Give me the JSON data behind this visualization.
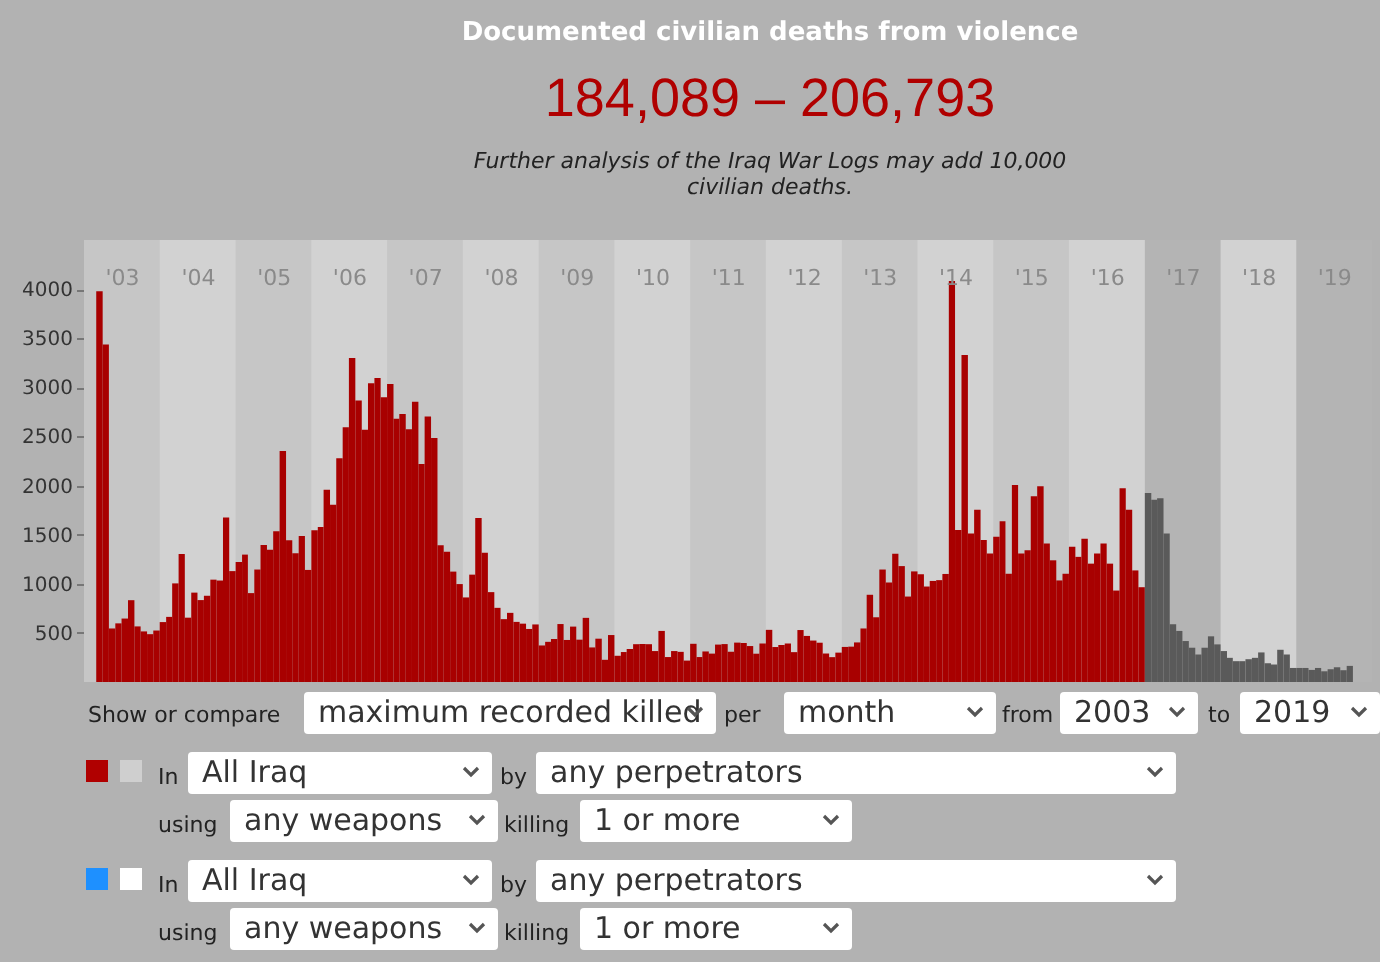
{
  "chart_data": {
    "type": "bar",
    "title": "Documented civilian deaths from violence",
    "subtitle": "184,089 – 206,793",
    "annotations": [
      "Further analysis of the Iraq War Logs may add 10,000 civilian deaths.",
      "Show or compare",
      "maximum recorded killed",
      "per",
      "month",
      "from",
      "2003",
      "to",
      "2019",
      "In",
      "All Iraq",
      "by",
      "any perpetrators",
      "using",
      "any weapons",
      "killing",
      "1 or more",
      "In",
      "All Iraq",
      "by",
      "any perpetrators",
      "using",
      "any weapons",
      "killing",
      "1 or more"
    ],
    "xlim": [
      "2003-01",
      "2020-01"
    ],
    "xticks": [
      {
        "value": "2003-07",
        "label": "'03"
      },
      {
        "value": "2004-07",
        "label": "'04"
      },
      {
        "value": "2005-07",
        "label": "'05"
      },
      {
        "value": "2006-07",
        "label": "'06"
      },
      {
        "value": "2007-07",
        "label": "'07"
      },
      {
        "value": "2008-07",
        "label": "'08"
      },
      {
        "value": "2009-07",
        "label": "'09"
      },
      {
        "value": "2010-07",
        "label": "'10"
      },
      {
        "value": "2011-07",
        "label": "'11"
      },
      {
        "value": "2012-07",
        "label": "'12"
      },
      {
        "value": "2013-07",
        "label": "'13"
      },
      {
        "value": "2014-07",
        "label": "'14"
      },
      {
        "value": "2015-07",
        "label": "'15"
      },
      {
        "value": "2016-07",
        "label": "'16"
      },
      {
        "value": "2017-07",
        "label": "'17"
      },
      {
        "value": "2018-07",
        "label": "'18"
      },
      {
        "value": "2019-07",
        "label": "'19"
      }
    ],
    "ylim": [
      0,
      4500
    ],
    "yticks": [
      500,
      1000,
      1500,
      2000,
      2500,
      3000,
      3500,
      4000
    ],
    "bands": [
      {
        "axis": "x",
        "from": "2003-01",
        "to": "2004-01",
        "color": "#c6c6c6"
      },
      {
        "axis": "x",
        "from": "2005-01",
        "to": "2006-01",
        "color": "#c6c6c6"
      },
      {
        "axis": "x",
        "from": "2007-01",
        "to": "2008-01",
        "color": "#c6c6c6"
      },
      {
        "axis": "x",
        "from": "2009-01",
        "to": "2010-01",
        "color": "#c6c6c6"
      },
      {
        "axis": "x",
        "from": "2011-01",
        "to": "2012-01",
        "color": "#c6c6c6"
      },
      {
        "axis": "x",
        "from": "2013-01",
        "to": "2014-01",
        "color": "#c6c6c6"
      },
      {
        "axis": "x",
        "from": "2015-01",
        "to": "2016-01",
        "color": "#c6c6c6"
      },
      {
        "axis": "x",
        "from": "2017-01",
        "to": "2018-01",
        "color": "#b4b4b4"
      },
      {
        "axis": "x",
        "from": "2019-01",
        "to": "2020-01",
        "color": "#b4b4b4"
      }
    ],
    "series": [
      {
        "color": "#a80000",
        "x": [
          "2003-01",
          "2003-02",
          "2003-03",
          "2003-04",
          "2003-05",
          "2003-06",
          "2003-07",
          "2003-08",
          "2003-09",
          "2003-10",
          "2003-11",
          "2003-12",
          "2004-01",
          "2004-02",
          "2004-03",
          "2004-04",
          "2004-05",
          "2004-06",
          "2004-07",
          "2004-08",
          "2004-09",
          "2004-10",
          "2004-11",
          "2004-12",
          "2005-01",
          "2005-02",
          "2005-03",
          "2005-04",
          "2005-05",
          "2005-06",
          "2005-07",
          "2005-08",
          "2005-09",
          "2005-10",
          "2005-11",
          "2005-12",
          "2006-01",
          "2006-02",
          "2006-03",
          "2006-04",
          "2006-05",
          "2006-06",
          "2006-07",
          "2006-08",
          "2006-09",
          "2006-10",
          "2006-11",
          "2006-12",
          "2007-01",
          "2007-02",
          "2007-03",
          "2007-04",
          "2007-05",
          "2007-06",
          "2007-07",
          "2007-08",
          "2007-09",
          "2007-10",
          "2007-11",
          "2007-12",
          "2008-01",
          "2008-02",
          "2008-03",
          "2008-04",
          "2008-05",
          "2008-06",
          "2008-07",
          "2008-08",
          "2008-09",
          "2008-10",
          "2008-11",
          "2008-12",
          "2009-01",
          "2009-02",
          "2009-03",
          "2009-04",
          "2009-05",
          "2009-06",
          "2009-07",
          "2009-08",
          "2009-09",
          "2009-10",
          "2009-11",
          "2009-12",
          "2010-01",
          "2010-02",
          "2010-03",
          "2010-04",
          "2010-05",
          "2010-06",
          "2010-07",
          "2010-08",
          "2010-09",
          "2010-10",
          "2010-11",
          "2010-12",
          "2011-01",
          "2011-02",
          "2011-03",
          "2011-04",
          "2011-05",
          "2011-06",
          "2011-07",
          "2011-08",
          "2011-09",
          "2011-10",
          "2011-11",
          "2011-12",
          "2012-01",
          "2012-02",
          "2012-03",
          "2012-04",
          "2012-05",
          "2012-06",
          "2012-07",
          "2012-08",
          "2012-09",
          "2012-10",
          "2012-11",
          "2012-12",
          "2013-01",
          "2013-02",
          "2013-03",
          "2013-04",
          "2013-05",
          "2013-06",
          "2013-07",
          "2013-08",
          "2013-09",
          "2013-10",
          "2013-11",
          "2013-12",
          "2014-01",
          "2014-02",
          "2014-03",
          "2014-04",
          "2014-05",
          "2014-06",
          "2014-07",
          "2014-08",
          "2014-09",
          "2014-10",
          "2014-11",
          "2014-12",
          "2015-01",
          "2015-02",
          "2015-03",
          "2015-04",
          "2015-05",
          "2015-06",
          "2015-07",
          "2015-08",
          "2015-09",
          "2015-10",
          "2015-11",
          "2015-12",
          "2016-01",
          "2016-02",
          "2016-03",
          "2016-04",
          "2016-05",
          "2016-06",
          "2016-07",
          "2016-08",
          "2016-09",
          "2016-10",
          "2016-11",
          "2016-12"
        ],
        "values": [
          0,
          0,
          3977,
          3437,
          545,
          597,
          646,
          833,
          566,
          515,
          487,
          524,
          610,
          663,
          1004,
          1303,
          655,
          910,
          834,
          878,
          1042,
          1033,
          1676,
          1129,
          1222,
          1297,
          905,
          1145,
          1396,
          1347,
          1536,
          2352,
          1444,
          1311,
          1487,
          1141,
          1546,
          1579,
          1957,
          1805,
          2279,
          2594,
          3298,
          2865,
          2567,
          3041,
          3095,
          2900,
          3035,
          2680,
          2728,
          2573,
          2854,
          2219,
          2702,
          2483,
          1391,
          1326,
          1124,
          997,
          861,
          1093,
          1669,
          1317,
          915,
          755,
          640,
          704,
          612,
          594,
          540,
          586,
          372,
          409,
          438,
          590,
          428,
          564,
          431,
          653,
          352,
          441,
          226,
          478,
          267,
          305,
          336,
          385,
          387,
          385,
          315,
          520,
          254,
          315,
          307,
          218,
          389,
          254,
          311,
          289,
          381,
          386,
          308,
          401,
          397,
          366,
          288,
          392,
          531,
          356,
          377,
          392,
          304,
          529,
          469,
          422,
          400,
          290,
          253,
          299,
          357,
          360,
          403,
          545,
          888,
          659,
          1145,
          1013,
          1306,
          1180,
          870,
          1126,
          1097,
          972,
          1029,
          1037,
          1100,
          4082,
          1547,
          3329,
          1513,
          1753,
          1445,
          1308,
          1479,
          1636,
          1102,
          2006,
          1308,
          1342,
          1890,
          1993,
          1411,
          1239,
          1034,
          1102,
          1376,
          1274,
          1459,
          1205,
          1308,
          1411,
          1205,
          931,
          1972,
          1753,
          1136,
          965
        ]
      },
      {
        "color": "#5a5a5a",
        "x": [
          "2017-01",
          "2017-02",
          "2017-03",
          "2017-04",
          "2017-05",
          "2017-06",
          "2017-07",
          "2017-08",
          "2017-09",
          "2017-10",
          "2017-11",
          "2017-12",
          "2018-01",
          "2018-02",
          "2018-03",
          "2018-04",
          "2018-05",
          "2018-06",
          "2018-07",
          "2018-08",
          "2018-09",
          "2018-10",
          "2018-11",
          "2018-12",
          "2019-01",
          "2019-02",
          "2019-03",
          "2019-04",
          "2019-05",
          "2019-06",
          "2019-07",
          "2019-08",
          "2019-09"
        ],
        "values": [
          1924,
          1856,
          1870,
          1513,
          588,
          520,
          417,
          349,
          280,
          349,
          465,
          383,
          315,
          246,
          212,
          212,
          232,
          246,
          301,
          191,
          178,
          328,
          280,
          143,
          143,
          143,
          123,
          143,
          109,
          130,
          150,
          120,
          164
        ]
      }
    ]
  }
}
